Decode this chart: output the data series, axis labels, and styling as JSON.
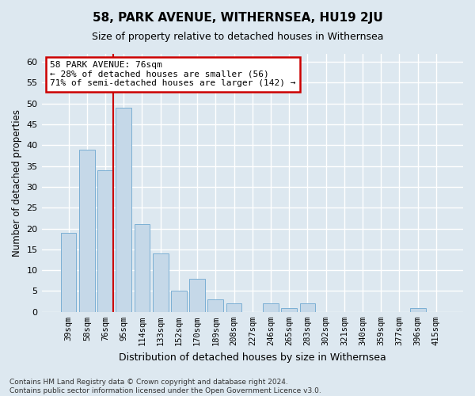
{
  "title": "58, PARK AVENUE, WITHERNSEA, HU19 2JU",
  "subtitle": "Size of property relative to detached houses in Withernsea",
  "xlabel": "Distribution of detached houses by size in Withernsea",
  "ylabel": "Number of detached properties",
  "categories": [
    "39sqm",
    "58sqm",
    "76sqm",
    "95sqm",
    "114sqm",
    "133sqm",
    "152sqm",
    "170sqm",
    "189sqm",
    "208sqm",
    "227sqm",
    "246sqm",
    "265sqm",
    "283sqm",
    "302sqm",
    "321sqm",
    "340sqm",
    "359sqm",
    "377sqm",
    "396sqm",
    "415sqm"
  ],
  "values": [
    19,
    39,
    34,
    49,
    21,
    14,
    5,
    8,
    3,
    2,
    0,
    2,
    1,
    2,
    0,
    0,
    0,
    0,
    0,
    1,
    0
  ],
  "bar_color": "#c5d8e8",
  "bar_edge_color": "#7bafd4",
  "highlight_line_index": 2,
  "highlight_line_color": "#cc0000",
  "ylim": [
    0,
    62
  ],
  "yticks": [
    0,
    5,
    10,
    15,
    20,
    25,
    30,
    35,
    40,
    45,
    50,
    55,
    60
  ],
  "annotation_text": "58 PARK AVENUE: 76sqm\n← 28% of detached houses are smaller (56)\n71% of semi-detached houses are larger (142) →",
  "annotation_box_color": "#ffffff",
  "annotation_box_edge_color": "#cc0000",
  "footer_line1": "Contains HM Land Registry data © Crown copyright and database right 2024.",
  "footer_line2": "Contains public sector information licensed under the Open Government Licence v3.0.",
  "background_color": "#dde8f0",
  "grid_color": "#ffffff"
}
